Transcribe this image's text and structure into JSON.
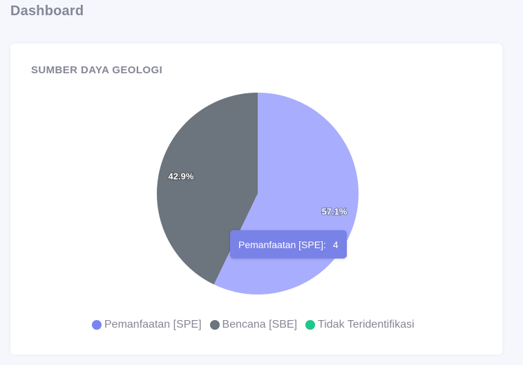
{
  "page": {
    "title": "Dashboard"
  },
  "card": {
    "title": "SUMBER DAYA GEOLOGI"
  },
  "chart_data": {
    "type": "pie",
    "categories": [
      "Pemanfaatan [SPE]",
      "Bencana [SBE]",
      "Tidak Teridentifikasi"
    ],
    "values": [
      4,
      3,
      0
    ],
    "percent_labels": [
      "57.1%",
      "42.9%",
      ""
    ],
    "colors": [
      "#a8aefd",
      "#6c747d",
      "#1cc88a"
    ],
    "legend_dot_colors": [
      "#7a84f0",
      "#6c747d",
      "#1cc88a"
    ],
    "legend_position": "bottom"
  },
  "tooltip": {
    "label": "Pemanfaatan [SPE]:",
    "value": "4",
    "color": "#7982e6"
  }
}
